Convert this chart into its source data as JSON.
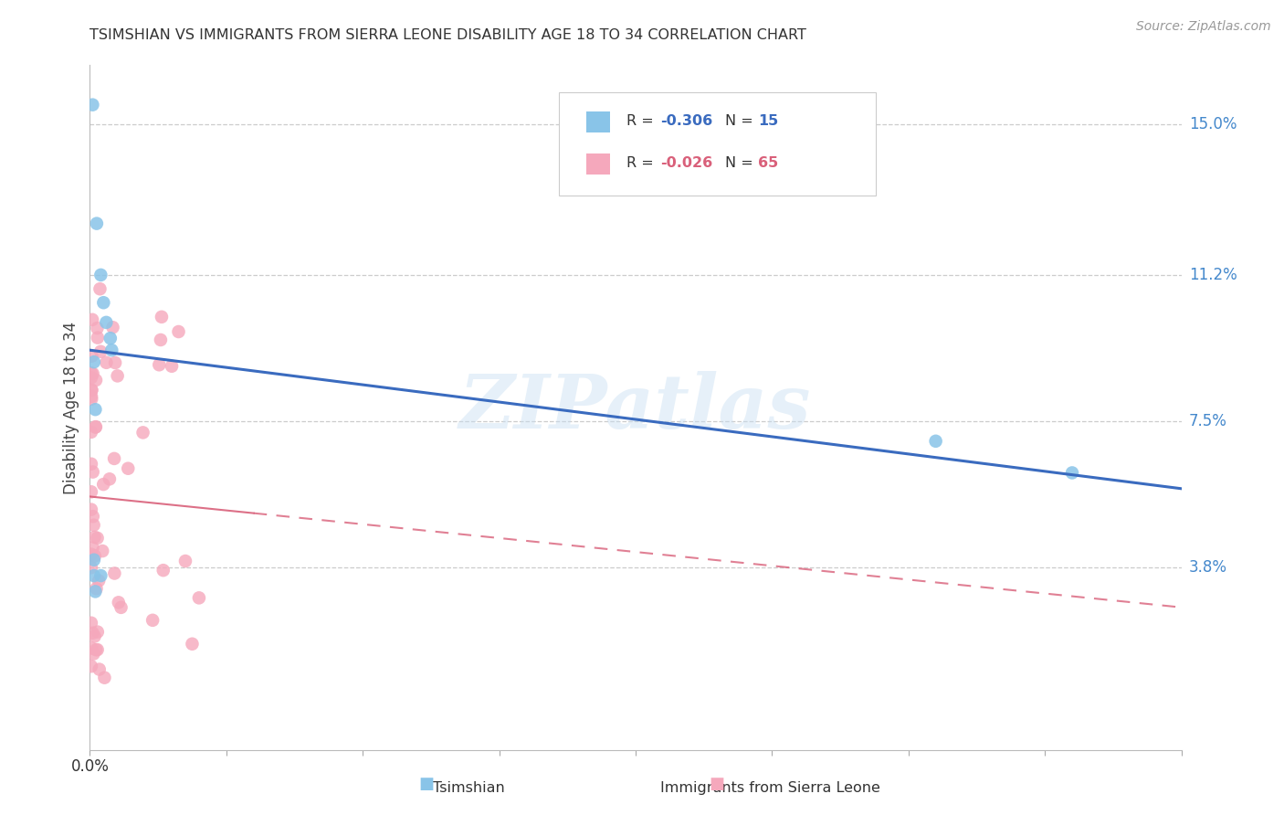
{
  "title": "TSIMSHIAN VS IMMIGRANTS FROM SIERRA LEONE DISABILITY AGE 18 TO 34 CORRELATION CHART",
  "source": "Source: ZipAtlas.com",
  "ylabel": "Disability Age 18 to 34",
  "xmin": 0.0,
  "xmax": 0.8,
  "ymin": 0.0,
  "ymax": 0.165,
  "ytick_vals": [
    0.038,
    0.075,
    0.112,
    0.15
  ],
  "ytick_labels": [
    "3.8%",
    "7.5%",
    "11.2%",
    "15.0%"
  ],
  "watermark": "ZIPatlas",
  "legend_r1": "-0.306",
  "legend_n1": "15",
  "legend_r2": "-0.026",
  "legend_n2": "65",
  "tsimshian_color": "#89c4e8",
  "sierra_leone_color": "#f5a8bc",
  "tsimshian_line_color": "#3a6bbf",
  "sierra_leone_line_color": "#d9607a",
  "background_color": "#ffffff",
  "grid_color": "#cccccc",
  "title_color": "#333333",
  "right_ytick_color": "#4488cc",
  "tsimshian_x": [
    0.002,
    0.005,
    0.008,
    0.01,
    0.012,
    0.015,
    0.016,
    0.003,
    0.004,
    0.003,
    0.62,
    0.72,
    0.003,
    0.008,
    0.004
  ],
  "tsimshian_y": [
    0.155,
    0.125,
    0.112,
    0.105,
    0.1,
    0.096,
    0.093,
    0.09,
    0.078,
    0.04,
    0.07,
    0.062,
    0.036,
    0.036,
    0.032
  ],
  "tsimshian_line_x0": 0.0,
  "tsimshian_line_x1": 0.8,
  "tsimshian_line_y0": 0.093,
  "tsimshian_line_y1": 0.058,
  "sierra_leone_line_x0": 0.0,
  "sierra_leone_line_x1": 0.8,
  "sierra_leone_line_y0": 0.056,
  "sierra_leone_line_y1": 0.028
}
